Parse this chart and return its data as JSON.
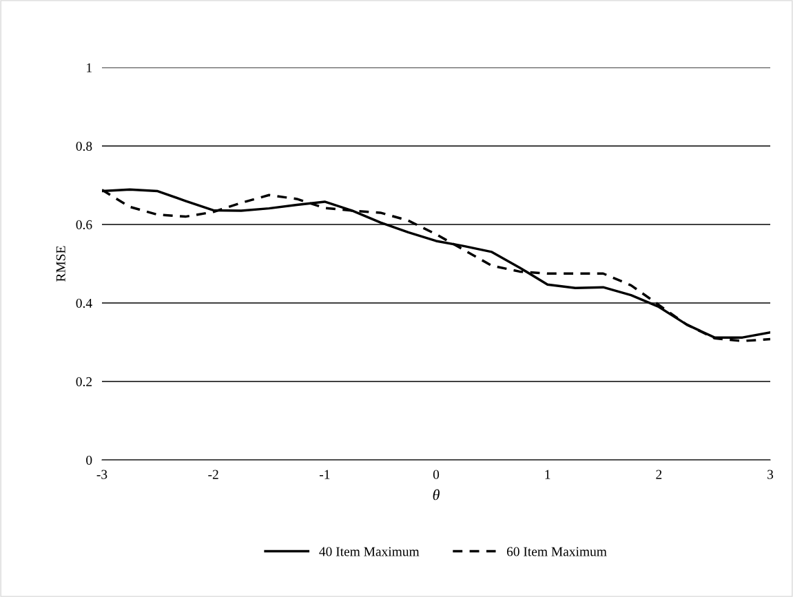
{
  "chart_data": {
    "type": "line",
    "xlabel": "θ",
    "ylabel": "RMSE",
    "x": [
      -3,
      -2.75,
      -2.5,
      -2.25,
      -2,
      -1.75,
      -1.5,
      -1.25,
      -1,
      -0.75,
      -0.5,
      -0.25,
      0,
      0.25,
      0.5,
      0.75,
      1,
      1.25,
      1.5,
      1.75,
      2,
      2.25,
      2.5,
      2.75,
      3
    ],
    "series": [
      {
        "name": "40 Item Maximum",
        "color": "#000000",
        "line_style": "solid",
        "values": [
          0.685,
          0.689,
          0.685,
          0.66,
          0.636,
          0.635,
          0.641,
          0.65,
          0.658,
          0.635,
          0.605,
          0.58,
          0.558,
          0.545,
          0.53,
          0.49,
          0.447,
          0.438,
          0.44,
          0.42,
          0.39,
          0.345,
          0.312,
          0.312,
          0.325
        ]
      },
      {
        "name": "60 Item Maximum",
        "color": "#000000",
        "line_style": "dashed",
        "values": [
          0.688,
          0.645,
          0.625,
          0.62,
          0.632,
          0.655,
          0.675,
          0.665,
          0.642,
          0.635,
          0.63,
          0.61,
          0.575,
          0.535,
          0.495,
          0.48,
          0.475,
          0.475,
          0.475,
          0.445,
          0.395,
          0.345,
          0.31,
          0.303,
          0.308
        ]
      }
    ],
    "xlim": [
      -3,
      3
    ],
    "xticks": [
      -3,
      -2,
      -1,
      0,
      1,
      2,
      3
    ],
    "ylim": [
      0,
      1
    ],
    "yticks": [
      0,
      0.2,
      0.4,
      0.6,
      0.8,
      1
    ],
    "grid": "y",
    "legend": "bottom",
    "marker": "none"
  }
}
